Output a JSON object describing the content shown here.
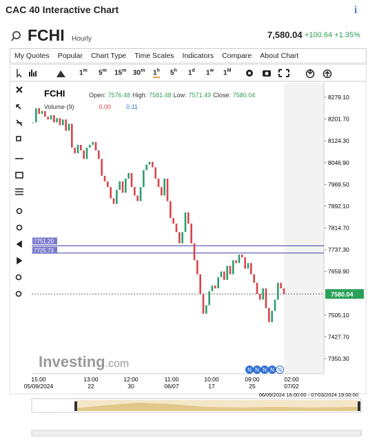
{
  "header": {
    "title": "CAC 40 Interactive Chart",
    "info": "i"
  },
  "quote": {
    "symbol": "FCHI",
    "interval": "Hourly",
    "price": "7,580.04",
    "change": "+100.64",
    "change_pct": "+1.35%"
  },
  "menu": [
    "My Quotes",
    "Popular",
    "Chart Type",
    "Time Scales",
    "Indicators",
    "Compare",
    "About Chart"
  ],
  "timeframes": [
    {
      "n": "1",
      "u": "m"
    },
    {
      "n": "5",
      "u": "m"
    },
    {
      "n": "15",
      "u": "m"
    },
    {
      "n": "30",
      "u": "m"
    },
    {
      "n": "1",
      "u": "h"
    },
    {
      "n": "5",
      "u": "h"
    },
    {
      "n": "1",
      "u": "d"
    },
    {
      "n": "1",
      "u": "w"
    },
    {
      "n": "1",
      "u": "M"
    }
  ],
  "chart_data": {
    "type": "candlestick",
    "symbol": "FCHI",
    "legend": {
      "open_label": "Open:",
      "open": 7576.48,
      "high_label": "High:",
      "high": 7581.48,
      "low_label": "Low:",
      "low": 7571.49,
      "close_label": "Close:",
      "close": 7580.04,
      "volume_label": "Volume (9)",
      "volume_a": "0.00",
      "volume_b": 0.11
    },
    "close": [
      8190,
      8240,
      8220,
      8230,
      8210,
      8200,
      8215,
      8190,
      8205,
      8180,
      8200,
      8160,
      8185,
      8100,
      8080,
      8110,
      8090,
      8060,
      8100,
      8110,
      8120,
      8090,
      8060,
      8000,
      7980,
      7960,
      7920,
      7900,
      7950,
      7980,
      7940,
      7990,
      8010,
      7960,
      7930,
      7910,
      7960,
      8020,
      8040,
      8050,
      8030,
      7990,
      7960,
      7930,
      7990,
      7910,
      7850,
      7830,
      7800,
      7760,
      7800,
      7870,
      7830,
      7760,
      7700,
      7650,
      7580,
      7510,
      7540,
      7590,
      7610,
      7600,
      7640,
      7660,
      7630,
      7680,
      7650,
      7700,
      7690,
      7720,
      7710,
      7670,
      7690,
      7650,
      7620,
      7580,
      7560,
      7600,
      7530,
      7480,
      7520,
      7560,
      7620,
      7600,
      7580
    ],
    "up_color": "#2a9d6f",
    "down_color": "#d9434a",
    "ylim": [
      7296.4,
      8330.6
    ],
    "yticks": [
      {
        "value": 8279.1,
        "label": "8279.10"
      },
      {
        "value": 8201.7,
        "label": "8201.70"
      },
      {
        "value": 8124.3,
        "label": "8124.30"
      },
      {
        "value": 8046.9,
        "label": "8046.90"
      },
      {
        "value": 7969.5,
        "label": "7969.50"
      },
      {
        "value": 7892.1,
        "label": "7892.10"
      },
      {
        "value": 7814.7,
        "label": "7814.70"
      },
      {
        "value": 7737.3,
        "label": "7737.30"
      },
      {
        "value": 7659.9,
        "label": "7659.90"
      },
      {
        "value": 7505.1,
        "label": "7505.10"
      },
      {
        "value": 7427.7,
        "label": "7427.70"
      },
      {
        "value": 7350.3,
        "label": "7350.30"
      }
    ],
    "ref_lines": [
      {
        "value": 7751.2,
        "label": "7751.20"
      },
      {
        "value": 7725.73,
        "label": "7725.73"
      }
    ],
    "current": {
      "value": 7580.04,
      "label": "7580.04"
    },
    "xlabels": [
      {
        "time": "15:00",
        "date": "05/09/2024"
      },
      {
        "time": "13:00",
        "date": "22"
      },
      {
        "time": "12:00",
        "date": "30"
      },
      {
        "time": "11:00",
        "date": "06/07"
      },
      {
        "time": "10:00",
        "date": "17"
      },
      {
        "time": "09:00",
        "date": "25"
      },
      {
        "time": "02:00",
        "date": "07/02"
      }
    ],
    "news_markers": [
      "N",
      "N",
      "N",
      "N",
      "N"
    ],
    "watermark": {
      "brand": "Investing",
      "domain": ".com"
    },
    "navigator_range": "06/09/2024 16:00:00 - 07/03/2024 19:00:00"
  }
}
